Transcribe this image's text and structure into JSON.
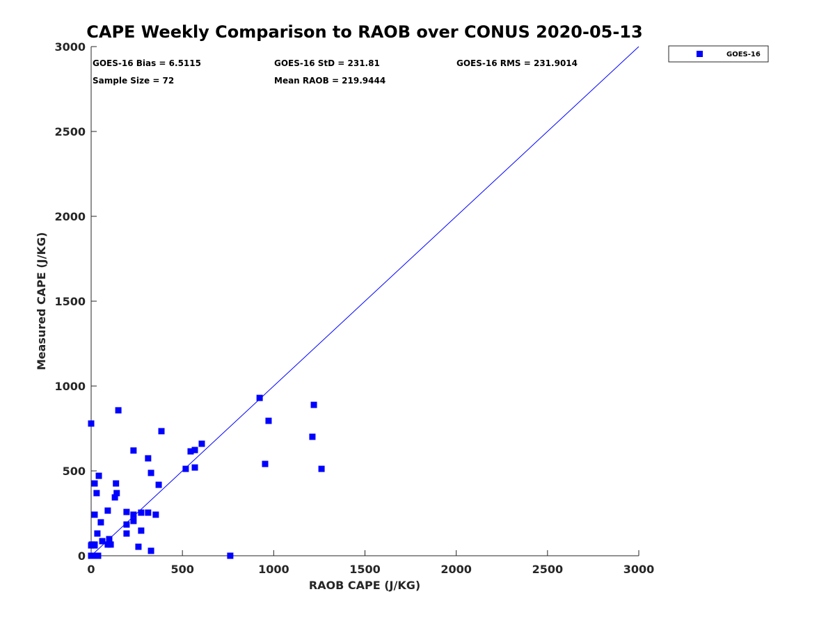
{
  "chart_data": {
    "type": "scatter",
    "title": "CAPE Weekly Comparison to RAOB over CONUS 2020-05-13",
    "xlabel": "RAOB CAPE (J/KG)",
    "ylabel": "Measured CAPE (J/KG)",
    "xlim": [
      0,
      3000
    ],
    "ylim": [
      0,
      3000
    ],
    "xticks": [
      "0",
      "500",
      "1000",
      "1500",
      "2000",
      "2500",
      "3000"
    ],
    "yticks": [
      "0",
      "500",
      "1000",
      "1500",
      "2000",
      "2500",
      "3000"
    ],
    "xtick_values": [
      0,
      500,
      1000,
      1500,
      2000,
      2500,
      3000
    ],
    "ytick_values": [
      0,
      500,
      1000,
      1500,
      2000,
      2500,
      3000
    ],
    "grid": false,
    "legend": {
      "placement": "outside-top-right",
      "entries": [
        "GOES-16"
      ]
    },
    "reference_line": {
      "name": "1:1 line",
      "x": [
        0,
        3000
      ],
      "y": [
        0,
        3000
      ]
    },
    "stats": {
      "bias": "GOES-16 Bias = 6.5115",
      "std": "GOES-16 StD = 231.81",
      "rms": "GOES-16 RMS = 231.9014",
      "sample": "Sample Size = 72",
      "mean": "Mean RAOB = 219.9444"
    },
    "colors": {
      "series": "#0000ff",
      "line": "#0000ff"
    },
    "series": [
      {
        "name": "GOES-16",
        "x": [
          0,
          149,
          385,
          0,
          19,
          4,
          19,
          0,
          19,
          38,
          19,
          42,
          30,
          130,
          91,
          19,
          53,
          34,
          61,
          99,
          91,
          107,
          194,
          232,
          194,
          232,
          194,
          274,
          312,
          354,
          274,
          259,
          328,
          370,
          328,
          312,
          232,
          518,
          568,
          545,
          568,
          606,
          762,
          923,
          972,
          953,
          1220,
          1212,
          1262,
          136,
          140
        ],
        "y": [
          779,
          857,
          734,
          61,
          61,
          66,
          66,
          0,
          0,
          0,
          426,
          471,
          369,
          344,
          266,
          242,
          197,
          131,
          86,
          98,
          66,
          66,
          258,
          242,
          184,
          205,
          131,
          254,
          254,
          242,
          148,
          53,
          29,
          418,
          488,
          574,
          620,
          512,
          520,
          615,
          623,
          660,
          0,
          930,
          795,
          541,
          889,
          701,
          512,
          426,
          369
        ]
      }
    ]
  }
}
